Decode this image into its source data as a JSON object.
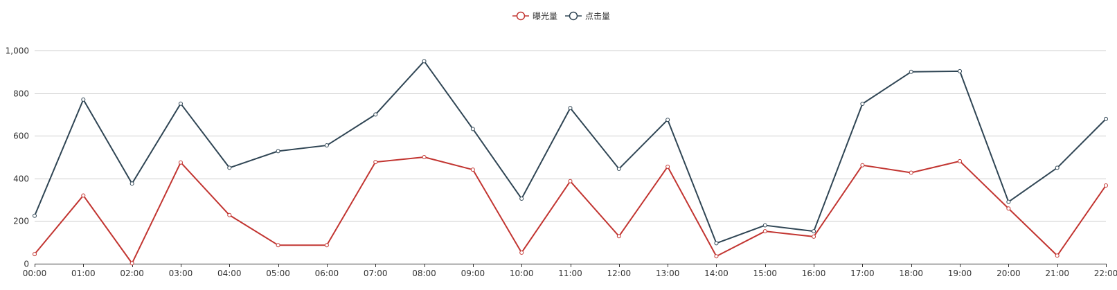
{
  "chart_data": {
    "type": "line",
    "legend": {
      "position": "top-center",
      "items": [
        "曝光量",
        "点击量"
      ]
    },
    "grid": true,
    "categories": [
      "00:00",
      "01:00",
      "02:00",
      "03:00",
      "04:00",
      "05:00",
      "06:00",
      "07:00",
      "08:00",
      "09:00",
      "10:00",
      "11:00",
      "12:00",
      "13:00",
      "14:00",
      "15:00",
      "16:00",
      "17:00",
      "18:00",
      "19:00",
      "20:00",
      "21:00",
      "22:00"
    ],
    "ylim": [
      0,
      1000
    ],
    "yticks": [
      0,
      200,
      400,
      600,
      800,
      1000
    ],
    "ytick_labels": [
      "0",
      "200",
      "400",
      "600",
      "800",
      "1,000"
    ],
    "series": [
      {
        "name": "曝光量",
        "color": "#c23531",
        "values": [
          45,
          320,
          2,
          475,
          228,
          87,
          87,
          477,
          500,
          441,
          52,
          387,
          129,
          455,
          35,
          152,
          127,
          462,
          427,
          481,
          259,
          38,
          367
        ]
      },
      {
        "name": "点击量",
        "color": "#2f4554",
        "values": [
          225,
          770,
          376,
          751,
          450,
          528,
          555,
          700,
          950,
          632,
          305,
          730,
          445,
          675,
          96,
          180,
          152,
          750,
          900,
          903,
          290,
          450,
          679
        ]
      }
    ]
  }
}
